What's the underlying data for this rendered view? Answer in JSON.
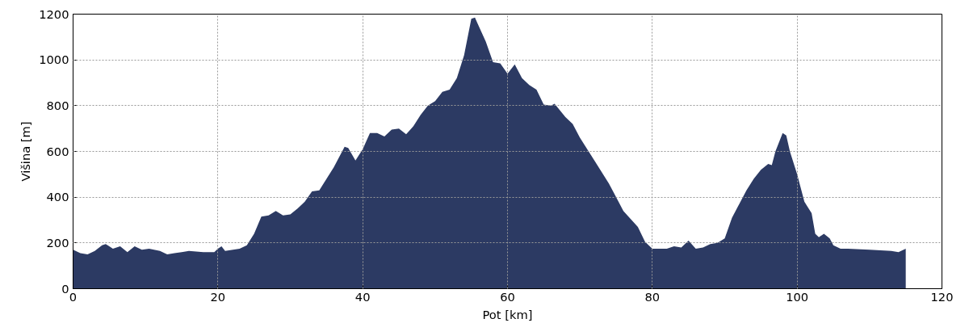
{
  "chart_data": {
    "type": "area",
    "xlabel": "Pot [km]",
    "ylabel": "Višina [m]",
    "x": [
      0,
      1,
      2,
      3,
      4,
      4.5,
      5,
      5.5,
      6.5,
      7.5,
      8.5,
      9.5,
      10.5,
      12,
      13,
      14,
      15,
      16,
      18,
      19.5,
      20,
      20.5,
      21,
      23,
      24,
      25,
      26,
      27,
      28,
      29,
      30,
      31,
      32,
      33,
      34,
      35,
      36,
      37,
      37.5,
      38,
      39,
      40,
      41,
      42,
      43,
      44,
      45,
      46,
      47,
      48,
      49,
      50,
      51,
      52,
      53,
      54,
      55,
      55.5,
      56,
      57,
      58,
      59,
      60,
      60.5,
      61,
      62,
      63,
      64,
      65,
      66,
      66.5,
      68,
      69,
      70,
      72,
      74,
      76,
      78,
      79,
      80,
      82,
      83,
      84,
      85,
      86,
      87,
      88,
      89,
      90,
      91,
      92,
      93,
      94,
      95,
      96,
      96.5,
      97,
      98,
      98.5,
      99,
      100,
      101,
      102,
      102.5,
      103,
      103.7,
      104.5,
      105,
      106,
      107,
      110,
      113,
      114,
      115
    ],
    "series": [
      {
        "color": "#2c3a63",
        "values": [
          170,
          155,
          150,
          165,
          190,
          195,
          185,
          175,
          185,
          160,
          185,
          170,
          175,
          165,
          150,
          155,
          160,
          165,
          160,
          160,
          175,
          185,
          165,
          175,
          190,
          240,
          315,
          320,
          340,
          320,
          325,
          350,
          380,
          425,
          430,
          480,
          530,
          590,
          620,
          615,
          560,
          610,
          680,
          680,
          665,
          695,
          700,
          675,
          710,
          760,
          800,
          820,
          860,
          870,
          920,
          1020,
          1180,
          1185,
          1150,
          1080,
          990,
          985,
          940,
          960,
          980,
          920,
          890,
          870,
          805,
          800,
          808,
          750,
          720,
          660,
          560,
          460,
          340,
          270,
          205,
          175,
          175,
          185,
          180,
          210,
          175,
          180,
          195,
          200,
          220,
          310,
          370,
          430,
          480,
          520,
          545,
          540,
          600,
          680,
          670,
          600,
          500,
          380,
          330,
          240,
          225,
          240,
          220,
          190,
          175,
          175,
          170,
          165,
          160,
          175
        ]
      }
    ],
    "xlim": [
      0,
      120
    ],
    "ylim": [
      0,
      1200
    ],
    "xticks": [
      0,
      20,
      40,
      60,
      80,
      100,
      120
    ],
    "yticks": [
      0,
      200,
      400,
      600,
      800,
      1000,
      1200
    ],
    "grid": true
  }
}
